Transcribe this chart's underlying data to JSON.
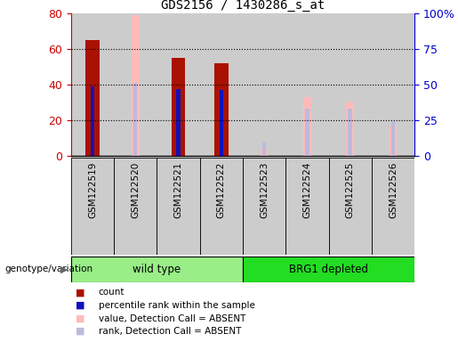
{
  "title": "GDS2156 / 1430286_s_at",
  "samples": [
    "GSM122519",
    "GSM122520",
    "GSM122521",
    "GSM122522",
    "GSM122523",
    "GSM122524",
    "GSM122525",
    "GSM122526"
  ],
  "count_values": [
    65,
    null,
    55,
    52,
    null,
    null,
    null,
    null
  ],
  "percentile_rank": [
    49,
    null,
    47,
    46,
    null,
    null,
    null,
    null
  ],
  "absent_value": [
    null,
    79,
    null,
    null,
    4,
    33,
    30,
    17
  ],
  "absent_rank": [
    null,
    51,
    null,
    null,
    9,
    33,
    33,
    24
  ],
  "ylim_left": [
    0,
    80
  ],
  "ylim_right": [
    0,
    100
  ],
  "yticks_left": [
    0,
    20,
    40,
    60,
    80
  ],
  "yticks_right": [
    0,
    25,
    50,
    75,
    100
  ],
  "yticklabels_right": [
    "0",
    "25",
    "50",
    "75",
    "100%"
  ],
  "color_count": "#aa1100",
  "color_rank": "#1111bb",
  "color_absent_value": "#ffbbbb",
  "color_absent_rank": "#bbbbdd",
  "group_color_wild": "#99ee88",
  "group_color_brg1": "#22dd22",
  "groups": [
    {
      "name": "wild type",
      "start": 0,
      "end": 3,
      "color": "#99ee88"
    },
    {
      "name": "BRG1 depleted",
      "start": 4,
      "end": 7,
      "color": "#22dd22"
    }
  ],
  "bar_width": 0.32,
  "rank_bar_width": 0.09,
  "absent_bar_width": 0.18,
  "absent_rank_bar_width": 0.09,
  "legend_items": [
    {
      "label": "count",
      "color": "#aa1100"
    },
    {
      "label": "percentile rank within the sample",
      "color": "#1111bb"
    },
    {
      "label": "value, Detection Call = ABSENT",
      "color": "#ffbbbb"
    },
    {
      "label": "rank, Detection Call = ABSENT",
      "color": "#bbbbdd"
    }
  ],
  "left_axis_color": "#cc0000",
  "right_axis_color": "#0000cc",
  "col_bg_color": "#cccccc",
  "plot_bg": "#ffffff",
  "genotype_label": "genotype/variation"
}
